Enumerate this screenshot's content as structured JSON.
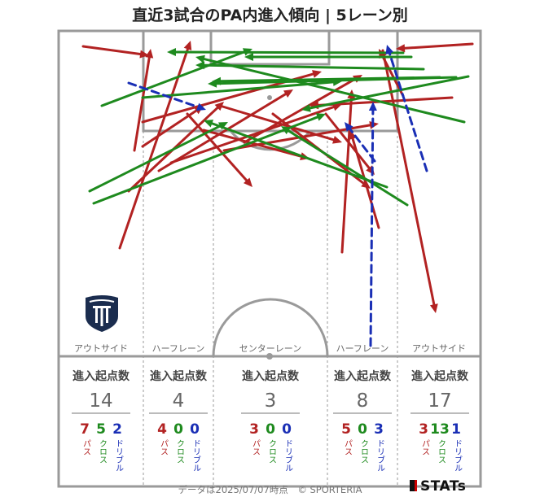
{
  "title": "直近3試合のPA内進入傾向 | 5レーン別",
  "footer": "データは2025/07/07時点　© SPORTERIA",
  "brand": "STATs",
  "colors": {
    "pass": "#b22222",
    "cross": "#1e8a1e",
    "dribble": "#1a2fb5",
    "line": "#9a9a9a"
  },
  "labels": {
    "entries": "進入起点数",
    "pass": "パス",
    "cross": "クロス",
    "dribble": "ドリブル"
  },
  "lanes": [
    {
      "name": "アウトサイド",
      "total": "14",
      "pass": "7",
      "cross": "5",
      "dribble": "2"
    },
    {
      "name": "ハーフレーン",
      "total": "4",
      "pass": "4",
      "cross": "0",
      "dribble": "0"
    },
    {
      "name": "センターレーン",
      "total": "3",
      "pass": "3",
      "cross": "0",
      "dribble": "0"
    },
    {
      "name": "ハーフレーン",
      "total": "8",
      "pass": "5",
      "cross": "0",
      "dribble": "3"
    },
    {
      "name": "アウトサイド",
      "total": "17",
      "pass": "3",
      "cross": "13",
      "dribble": "1"
    }
  ],
  "arrows": [
    {
      "type": "pass",
      "from": [
        102,
        57
      ],
      "to": [
        183,
        68
      ]
    },
    {
      "type": "pass",
      "from": [
        165,
        185
      ],
      "to": [
        185,
        60
      ]
    },
    {
      "type": "pass",
      "from": [
        147,
        305
      ],
      "to": [
        234,
        50
      ]
    },
    {
      "type": "pass",
      "from": [
        175,
        180
      ],
      "to": [
        250,
        130
      ]
    },
    {
      "type": "pass",
      "from": [
        230,
        140
      ],
      "to": [
        310,
        230
      ]
    },
    {
      "type": "pass",
      "from": [
        158,
        235
      ],
      "to": [
        275,
        125
      ]
    },
    {
      "type": "pass",
      "from": [
        195,
        210
      ],
      "to": [
        360,
        110
      ]
    },
    {
      "type": "pass",
      "from": [
        175,
        150
      ],
      "to": [
        395,
        88
      ]
    },
    {
      "type": "pass",
      "from": [
        210,
        200
      ],
      "to": [
        420,
        128
      ]
    },
    {
      "type": "pass",
      "from": [
        250,
        160
      ],
      "to": [
        380,
        195
      ]
    },
    {
      "type": "pass",
      "from": [
        275,
        185
      ],
      "to": [
        465,
        152
      ]
    },
    {
      "type": "pass",
      "from": [
        300,
        175
      ],
      "to": [
        445,
        92
      ]
    },
    {
      "type": "pass",
      "from": [
        335,
        140
      ],
      "to": [
        455,
        232
      ]
    },
    {
      "type": "pass",
      "from": [
        400,
        140
      ],
      "to": [
        460,
        215
      ]
    },
    {
      "type": "pass",
      "from": [
        420,
        310
      ],
      "to": [
        432,
        110
      ]
    },
    {
      "type": "pass",
      "from": [
        470,
        62
      ],
      "to": [
        535,
        385
      ]
    },
    {
      "type": "pass",
      "from": [
        495,
        118
      ],
      "to": [
        465,
        60
      ]
    },
    {
      "type": "pass",
      "from": [
        580,
        54
      ],
      "to": [
        486,
        60
      ]
    },
    {
      "type": "pass",
      "from": [
        555,
        120
      ],
      "to": [
        380,
        130
      ]
    },
    {
      "type": "pass",
      "from": [
        465,
        280
      ],
      "to": [
        430,
        160
      ]
    },
    {
      "type": "pass",
      "from": [
        270,
        130
      ],
      "to": [
        420,
        175
      ]
    },
    {
      "type": "cross",
      "from": [
        125,
        130
      ],
      "to": [
        310,
        60
      ]
    },
    {
      "type": "cross",
      "from": [
        110,
        235
      ],
      "to": [
        280,
        150
      ]
    },
    {
      "type": "cross",
      "from": [
        115,
        250
      ],
      "to": [
        400,
        140
      ]
    },
    {
      "type": "cross",
      "from": [
        175,
        120
      ],
      "to": [
        420,
        100
      ]
    },
    {
      "type": "cross",
      "from": [
        495,
        65
      ],
      "to": [
        205,
        64
      ]
    },
    {
      "type": "cross",
      "from": [
        560,
        95
      ],
      "to": [
        255,
        103
      ]
    },
    {
      "type": "cross",
      "from": [
        575,
        94
      ],
      "to": [
        370,
        135
      ]
    },
    {
      "type": "cross",
      "from": [
        520,
        85
      ],
      "to": [
        240,
        80
      ]
    },
    {
      "type": "cross",
      "from": [
        500,
        252
      ],
      "to": [
        345,
        155
      ]
    },
    {
      "type": "cross",
      "from": [
        570,
        150
      ],
      "to": [
        240,
        70
      ]
    },
    {
      "type": "cross",
      "from": [
        505,
        70
      ],
      "to": [
        300,
        70
      ]
    },
    {
      "type": "cross",
      "from": [
        540,
        95
      ],
      "to": [
        260,
        100
      ]
    },
    {
      "type": "cross",
      "from": [
        475,
        230
      ],
      "to": [
        250,
        148
      ]
    },
    {
      "type": "dribble",
      "from": [
        158,
        102
      ],
      "to": [
        253,
        135
      ]
    },
    {
      "type": "dribble",
      "from": [
        455,
        425
      ],
      "to": [
        458,
        125
      ]
    },
    {
      "type": "dribble",
      "from": [
        460,
        198
      ],
      "to": [
        423,
        150
      ]
    },
    {
      "type": "dribble",
      "from": [
        524,
        210
      ],
      "to": [
        475,
        55
      ]
    }
  ]
}
